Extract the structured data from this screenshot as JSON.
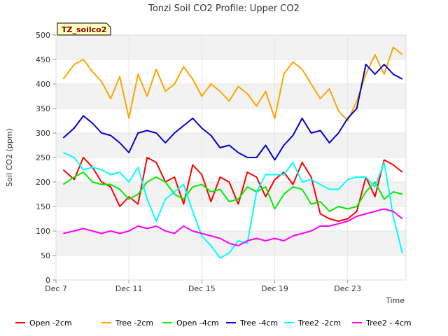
{
  "chart_data": {
    "type": "line",
    "title": "Tonzi Soil CO2 Profile: Upper CO2",
    "xlabel": "Time",
    "ylabel": "Soil CO2 (ppm)",
    "badge": "TZ_soilco2",
    "ylim": [
      0,
      500
    ],
    "yticks": [
      0,
      50,
      100,
      150,
      200,
      250,
      300,
      350,
      400,
      450,
      500
    ],
    "xlim": [
      0,
      19.2
    ],
    "xticks": [
      {
        "x": 0,
        "label": "Dec 7"
      },
      {
        "x": 4,
        "label": "Dec 11"
      },
      {
        "x": 8,
        "label": "Dec 15"
      },
      {
        "x": 12,
        "label": "Dec 19"
      },
      {
        "x": 16,
        "label": "Dec 23"
      }
    ],
    "grid": true,
    "legend_position": "bottom",
    "x_days": [
      0.4,
      1,
      1.5,
      2,
      2.5,
      3,
      3.5,
      4,
      4.5,
      5,
      5.5,
      6,
      6.5,
      7,
      7.5,
      8,
      8.5,
      9,
      9.5,
      10,
      10.5,
      11,
      11.5,
      12,
      12.5,
      13,
      13.5,
      14,
      14.5,
      15,
      15.5,
      16,
      16.5,
      17,
      17.5,
      18,
      18.5,
      19
    ],
    "series": [
      {
        "name": "Open -2cm",
        "color": "#ff0000",
        "values": [
          225,
          205,
          250,
          230,
          200,
          190,
          150,
          170,
          155,
          250,
          240,
          200,
          210,
          155,
          235,
          215,
          160,
          210,
          200,
          155,
          220,
          210,
          170,
          205,
          220,
          195,
          240,
          210,
          135,
          125,
          120,
          125,
          140,
          210,
          170,
          245,
          235,
          220
        ]
      },
      {
        "name": "Tree -2cm",
        "color": "#ffa500",
        "values": [
          410,
          440,
          450,
          425,
          405,
          370,
          415,
          330,
          420,
          375,
          430,
          385,
          400,
          435,
          410,
          375,
          400,
          385,
          365,
          395,
          380,
          355,
          385,
          330,
          420,
          445,
          430,
          400,
          370,
          390,
          345,
          325,
          365,
          420,
          460,
          420,
          475,
          460
        ]
      },
      {
        "name": "Open -4cm",
        "color": "#00ee00",
        "values": [
          195,
          210,
          220,
          200,
          195,
          195,
          185,
          165,
          175,
          200,
          210,
          200,
          175,
          165,
          190,
          195,
          180,
          185,
          160,
          165,
          190,
          180,
          190,
          145,
          175,
          190,
          185,
          155,
          160,
          140,
          150,
          145,
          150,
          180,
          200,
          165,
          180,
          175
        ]
      },
      {
        "name": "Tree -4cm",
        "color": "#0000cd",
        "values": [
          290,
          310,
          335,
          320,
          300,
          295,
          280,
          260,
          300,
          305,
          300,
          280,
          300,
          315,
          330,
          310,
          295,
          270,
          275,
          260,
          250,
          250,
          275,
          245,
          275,
          295,
          330,
          300,
          305,
          280,
          300,
          330,
          350,
          440,
          420,
          440,
          420,
          410
        ]
      },
      {
        "name": "Tree2 -2cm",
        "color": "#00ffff",
        "values": [
          260,
          250,
          225,
          230,
          225,
          215,
          220,
          200,
          230,
          165,
          120,
          165,
          180,
          195,
          140,
          90,
          70,
          45,
          55,
          80,
          75,
          180,
          215,
          215,
          215,
          240,
          200,
          205,
          195,
          185,
          185,
          205,
          210,
          210,
          190,
          240,
          130,
          55
        ]
      },
      {
        "name": "Tree2 - 4cm",
        "color": "#ff00ff",
        "values": [
          95,
          100,
          105,
          100,
          95,
          100,
          95,
          100,
          110,
          105,
          110,
          100,
          95,
          110,
          100,
          95,
          90,
          85,
          75,
          70,
          80,
          85,
          80,
          85,
          80,
          90,
          95,
          100,
          110,
          110,
          115,
          120,
          130,
          135,
          140,
          145,
          140,
          125
        ]
      }
    ]
  }
}
